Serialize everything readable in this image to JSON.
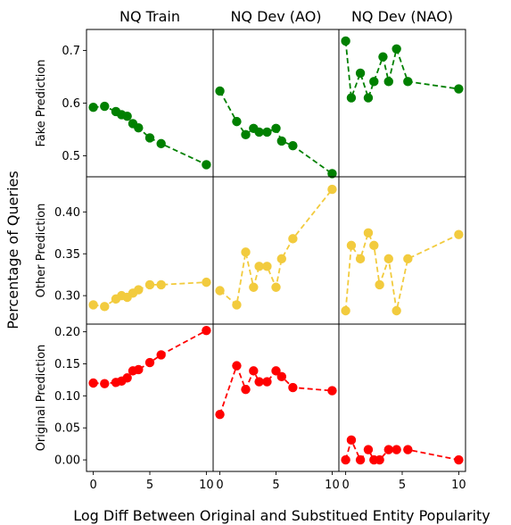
{
  "chart_data": {
    "type": "line",
    "xlabel": "Log Diff Between Original and Substitued Entity Popularity",
    "ylabel": "Percentage of Queries",
    "columns": [
      "NQ Train",
      "NQ Dev (AO)",
      "NQ Dev (NAO)"
    ],
    "xlim": [
      -0.6,
      10.6
    ],
    "xticks": [
      0,
      5,
      10
    ],
    "rows": [
      {
        "label": "Fake Prediction",
        "color": "#008000",
        "ylim": [
          0.46,
          0.74
        ],
        "yticks": [
          0.5,
          0.6,
          0.7
        ],
        "ytick_labels": [
          "0.5",
          "0.6",
          "0.7"
        ],
        "series": [
          {
            "column": "NQ Train",
            "x": [
              0.0,
              1.0,
              2.0,
              2.5,
              3.0,
              3.5,
              4.0,
              5.0,
              6.0,
              10.0
            ],
            "y": [
              0.592,
              0.594,
              0.584,
              0.578,
              0.575,
              0.561,
              0.553,
              0.534,
              0.523,
              0.483
            ]
          },
          {
            "column": "NQ Dev (AO)",
            "x": [
              0.0,
              1.5,
              2.3,
              3.0,
              3.5,
              4.2,
              5.0,
              5.5,
              6.5,
              10.0
            ],
            "y": [
              0.623,
              0.565,
              0.54,
              0.552,
              0.545,
              0.545,
              0.552,
              0.528,
              0.519,
              0.466
            ]
          },
          {
            "column": "NQ Dev (NAO)",
            "x": [
              0.0,
              0.5,
              1.3,
              2.0,
              2.5,
              3.3,
              3.8,
              4.5,
              5.5,
              10.0
            ],
            "y": [
              0.718,
              0.61,
              0.657,
              0.61,
              0.641,
              0.688,
              0.641,
              0.703,
              0.641,
              0.627
            ]
          }
        ]
      },
      {
        "label": "Other Prediction",
        "color": "#f2cb3e",
        "ylim": [
          0.266,
          0.442
        ],
        "yticks": [
          0.3,
          0.35,
          0.4
        ],
        "ytick_labels": [
          "0.30",
          "0.35",
          "0.40"
        ],
        "series": [
          {
            "column": "NQ Train",
            "x": [
              0.0,
              1.0,
              2.0,
              2.5,
              3.0,
              3.5,
              4.0,
              5.0,
              6.0,
              10.0
            ],
            "y": [
              0.289,
              0.287,
              0.296,
              0.3,
              0.298,
              0.303,
              0.307,
              0.313,
              0.313,
              0.316
            ]
          },
          {
            "column": "NQ Dev (AO)",
            "x": [
              0.0,
              1.5,
              2.3,
              3.0,
              3.5,
              4.2,
              5.0,
              5.5,
              6.5,
              10.0
            ],
            "y": [
              0.306,
              0.289,
              0.352,
              0.31,
              0.335,
              0.335,
              0.31,
              0.344,
              0.368,
              0.427
            ]
          },
          {
            "column": "NQ Dev (NAO)",
            "x": [
              0.0,
              0.5,
              1.3,
              2.0,
              2.5,
              3.0,
              3.8,
              4.5,
              5.5,
              10.0
            ],
            "y": [
              0.282,
              0.36,
              0.344,
              0.375,
              0.36,
              0.313,
              0.344,
              0.282,
              0.344,
              0.373
            ]
          }
        ]
      },
      {
        "label": "Original Prediction",
        "color": "#ff0000",
        "ylim": [
          -0.018,
          0.212
        ],
        "yticks": [
          0.0,
          0.05,
          0.1,
          0.15,
          0.2
        ],
        "ytick_labels": [
          "0.00",
          "0.05",
          "0.10",
          "0.15",
          "0.20"
        ],
        "series": [
          {
            "column": "NQ Train",
            "x": [
              0.0,
              1.0,
              2.0,
              2.5,
              3.0,
              3.5,
              4.0,
              5.0,
              6.0,
              10.0
            ],
            "y": [
              0.12,
              0.119,
              0.121,
              0.123,
              0.128,
              0.139,
              0.141,
              0.152,
              0.164,
              0.202
            ]
          },
          {
            "column": "NQ Dev (AO)",
            "x": [
              0.0,
              1.5,
              2.3,
              3.0,
              3.5,
              4.2,
              5.0,
              5.5,
              6.5,
              10.0
            ],
            "y": [
              0.071,
              0.147,
              0.11,
              0.139,
              0.122,
              0.122,
              0.139,
              0.13,
              0.113,
              0.108
            ]
          },
          {
            "column": "NQ Dev (NAO)",
            "x": [
              0.0,
              0.5,
              1.3,
              2.0,
              2.5,
              3.0,
              3.8,
              4.5,
              5.5,
              10.0
            ],
            "y": [
              0.0,
              0.031,
              0.0,
              0.016,
              0.0,
              0.0,
              0.016,
              0.016,
              0.016,
              0.0
            ]
          }
        ]
      }
    ]
  }
}
